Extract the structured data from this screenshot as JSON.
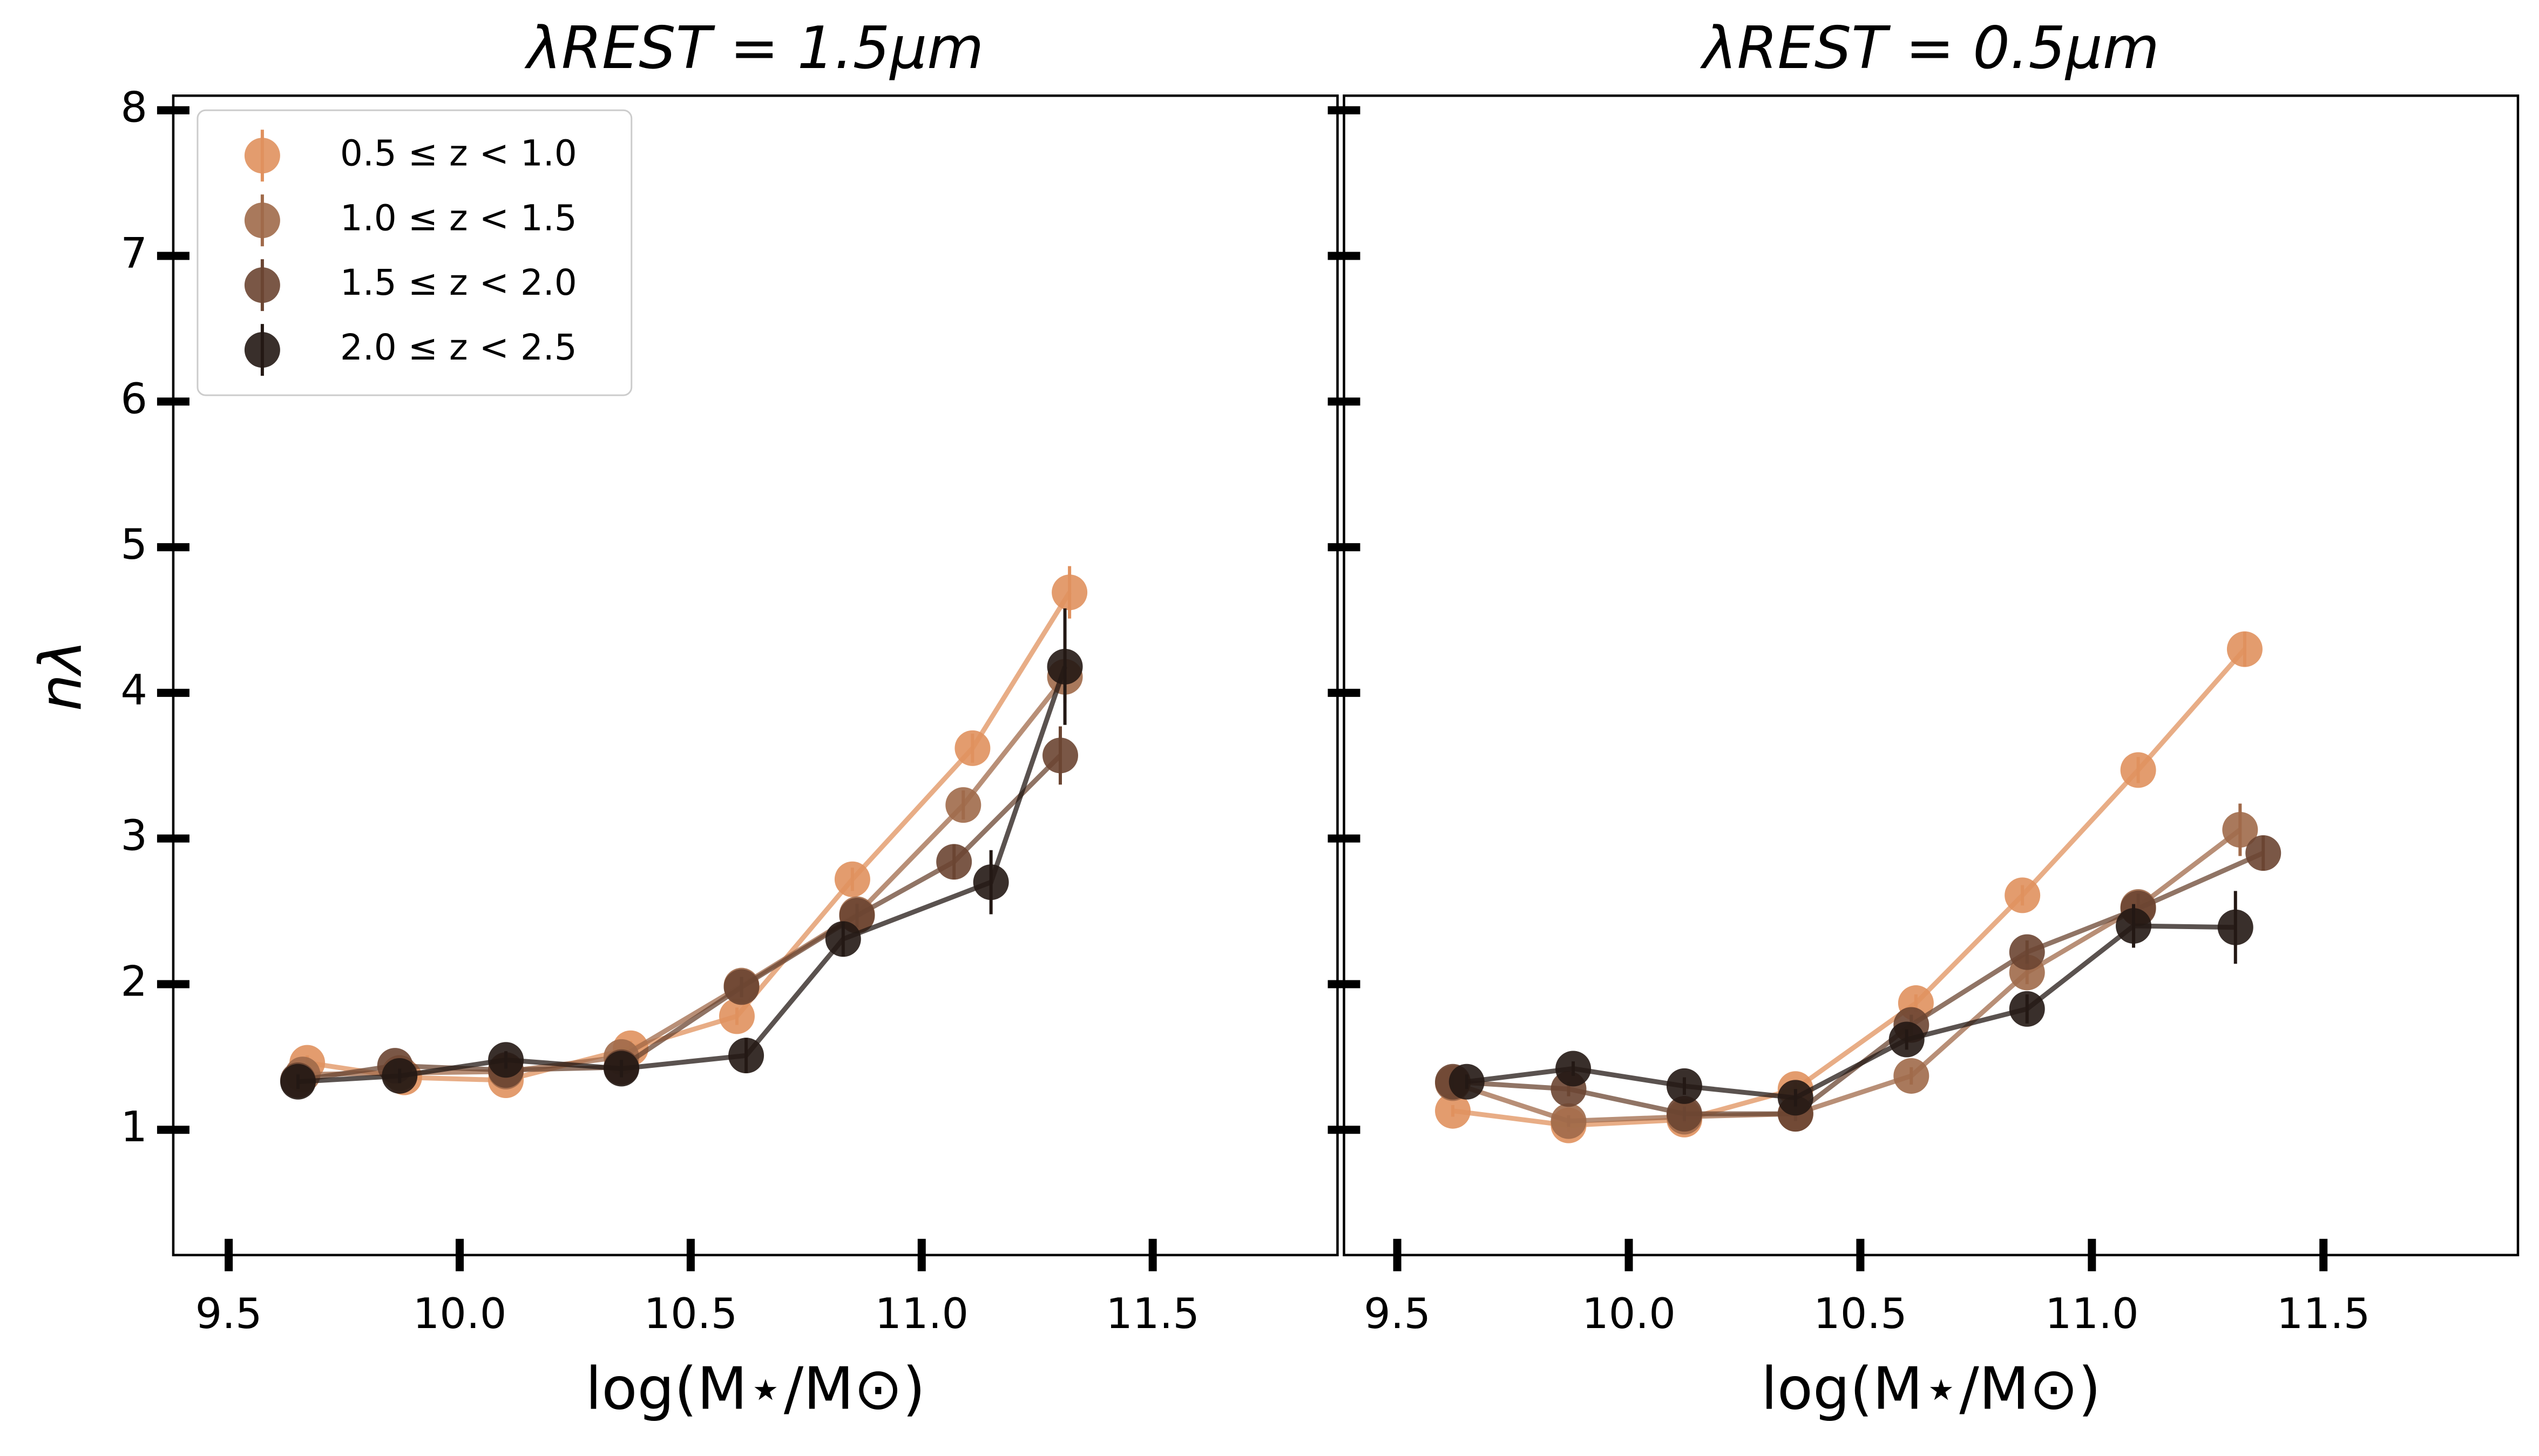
{
  "chart_data": [
    {
      "type": "scatter",
      "title": "λREST = 1.5μm",
      "x_label": "log(M⋆/M⊙)",
      "y_label": "nλ",
      "xlim": [
        9.38,
        11.9
      ],
      "ylim": [
        0.14,
        8.1
      ],
      "xticks": [
        9.5,
        {
          "value": 10,
          "label": "10.0"
        },
        10.5,
        {
          "value": 11,
          "label": "11.0"
        },
        11.5
      ],
      "yticks": [
        1,
        2,
        3,
        4,
        5,
        6,
        7,
        8
      ],
      "show_ytick_labels": true,
      "legend": "upper left",
      "series": [
        {
          "name": "0.5 ≤ z < 1.0",
          "color": "#e0915e",
          "x": [
            9.67,
            9.88,
            10.1,
            10.37,
            10.6,
            10.85,
            11.11,
            11.32
          ],
          "values": [
            1.46,
            1.36,
            1.34,
            1.56,
            1.78,
            2.72,
            3.62,
            4.69
          ],
          "errors": [
            0.05,
            0.05,
            0.04,
            0.05,
            0.06,
            0.08,
            0.1,
            0.18
          ]
        },
        {
          "name": "1.0 ≤ z < 1.5",
          "color": "#a06a4a",
          "x": [
            9.66,
            9.87,
            10.1,
            10.35,
            10.61,
            10.86,
            11.09,
            11.31
          ],
          "values": [
            1.38,
            1.39,
            1.4,
            1.5,
            1.99,
            2.48,
            3.23,
            4.11
          ],
          "errors": [
            0.05,
            0.05,
            0.04,
            0.05,
            0.06,
            0.08,
            0.1,
            0.18
          ]
        },
        {
          "name": "1.5 ≤ z < 2.0",
          "color": "#6b4532",
          "x": [
            9.65,
            9.86,
            10.1,
            10.35,
            10.61,
            10.86,
            11.07,
            11.3
          ],
          "values": [
            1.34,
            1.44,
            1.41,
            1.43,
            1.98,
            2.47,
            2.84,
            3.57
          ],
          "errors": [
            0.05,
            0.05,
            0.05,
            0.05,
            0.07,
            0.08,
            0.12,
            0.2
          ]
        },
        {
          "name": "2.0 ≤ z < 2.5",
          "color": "#231814",
          "x": [
            9.65,
            9.87,
            10.1,
            10.35,
            10.62,
            10.83,
            11.15,
            11.31
          ],
          "values": [
            1.33,
            1.37,
            1.48,
            1.42,
            1.51,
            2.31,
            2.7,
            4.18
          ],
          "errors": [
            0.05,
            0.05,
            0.06,
            0.06,
            0.12,
            0.12,
            0.22,
            0.4
          ]
        }
      ]
    },
    {
      "type": "scatter",
      "title": "λREST = 0.5μm",
      "x_label": "log(M⋆/M⊙)",
      "xlim": [
        9.385,
        11.92
      ],
      "ylim": [
        0.14,
        8.1
      ],
      "xticks": [
        9.5,
        {
          "value": 10,
          "label": "10.0"
        },
        10.5,
        {
          "value": 11,
          "label": "11.0"
        },
        11.5
      ],
      "yticks": [
        1,
        2,
        3,
        4,
        5,
        6,
        7,
        8
      ],
      "show_ytick_labels": false,
      "series": [
        {
          "name": "0.5 ≤ z < 1.0",
          "color": "#e0915e",
          "x": [
            9.62,
            9.87,
            10.12,
            10.36,
            10.62,
            10.85,
            11.1,
            11.33
          ],
          "values": [
            1.13,
            1.03,
            1.07,
            1.28,
            1.87,
            2.61,
            3.47,
            4.3
          ],
          "errors": [
            0.04,
            0.04,
            0.04,
            0.05,
            0.06,
            0.07,
            0.09,
            0.12
          ]
        },
        {
          "name": "1.0 ≤ z < 1.5",
          "color": "#a06a4a",
          "x": [
            9.62,
            9.87,
            10.12,
            10.36,
            10.61,
            10.86,
            11.1,
            11.32
          ],
          "values": [
            1.32,
            1.06,
            1.09,
            1.11,
            1.37,
            2.08,
            2.53,
            3.06
          ],
          "errors": [
            0.04,
            0.04,
            0.04,
            0.05,
            0.06,
            0.08,
            0.1,
            0.18
          ]
        },
        {
          "name": "1.5 ≤ z < 2.0",
          "color": "#6b4532",
          "x": [
            9.62,
            9.87,
            10.12,
            10.36,
            10.61,
            10.86,
            11.1,
            11.37
          ],
          "values": [
            1.33,
            1.28,
            1.11,
            1.11,
            1.72,
            2.22,
            2.52,
            2.9
          ],
          "errors": [
            0.05,
            0.05,
            0.05,
            0.05,
            0.07,
            0.08,
            0.1,
            0.12
          ]
        },
        {
          "name": "2.0 ≤ z < 2.5",
          "color": "#231814",
          "x": [
            9.65,
            9.88,
            10.12,
            10.36,
            10.6,
            10.86,
            11.09,
            11.31
          ],
          "values": [
            1.33,
            1.42,
            1.3,
            1.22,
            1.62,
            1.83,
            2.4,
            2.39
          ],
          "errors": [
            0.05,
            0.05,
            0.06,
            0.06,
            0.07,
            0.1,
            0.15,
            0.25
          ]
        }
      ]
    }
  ]
}
